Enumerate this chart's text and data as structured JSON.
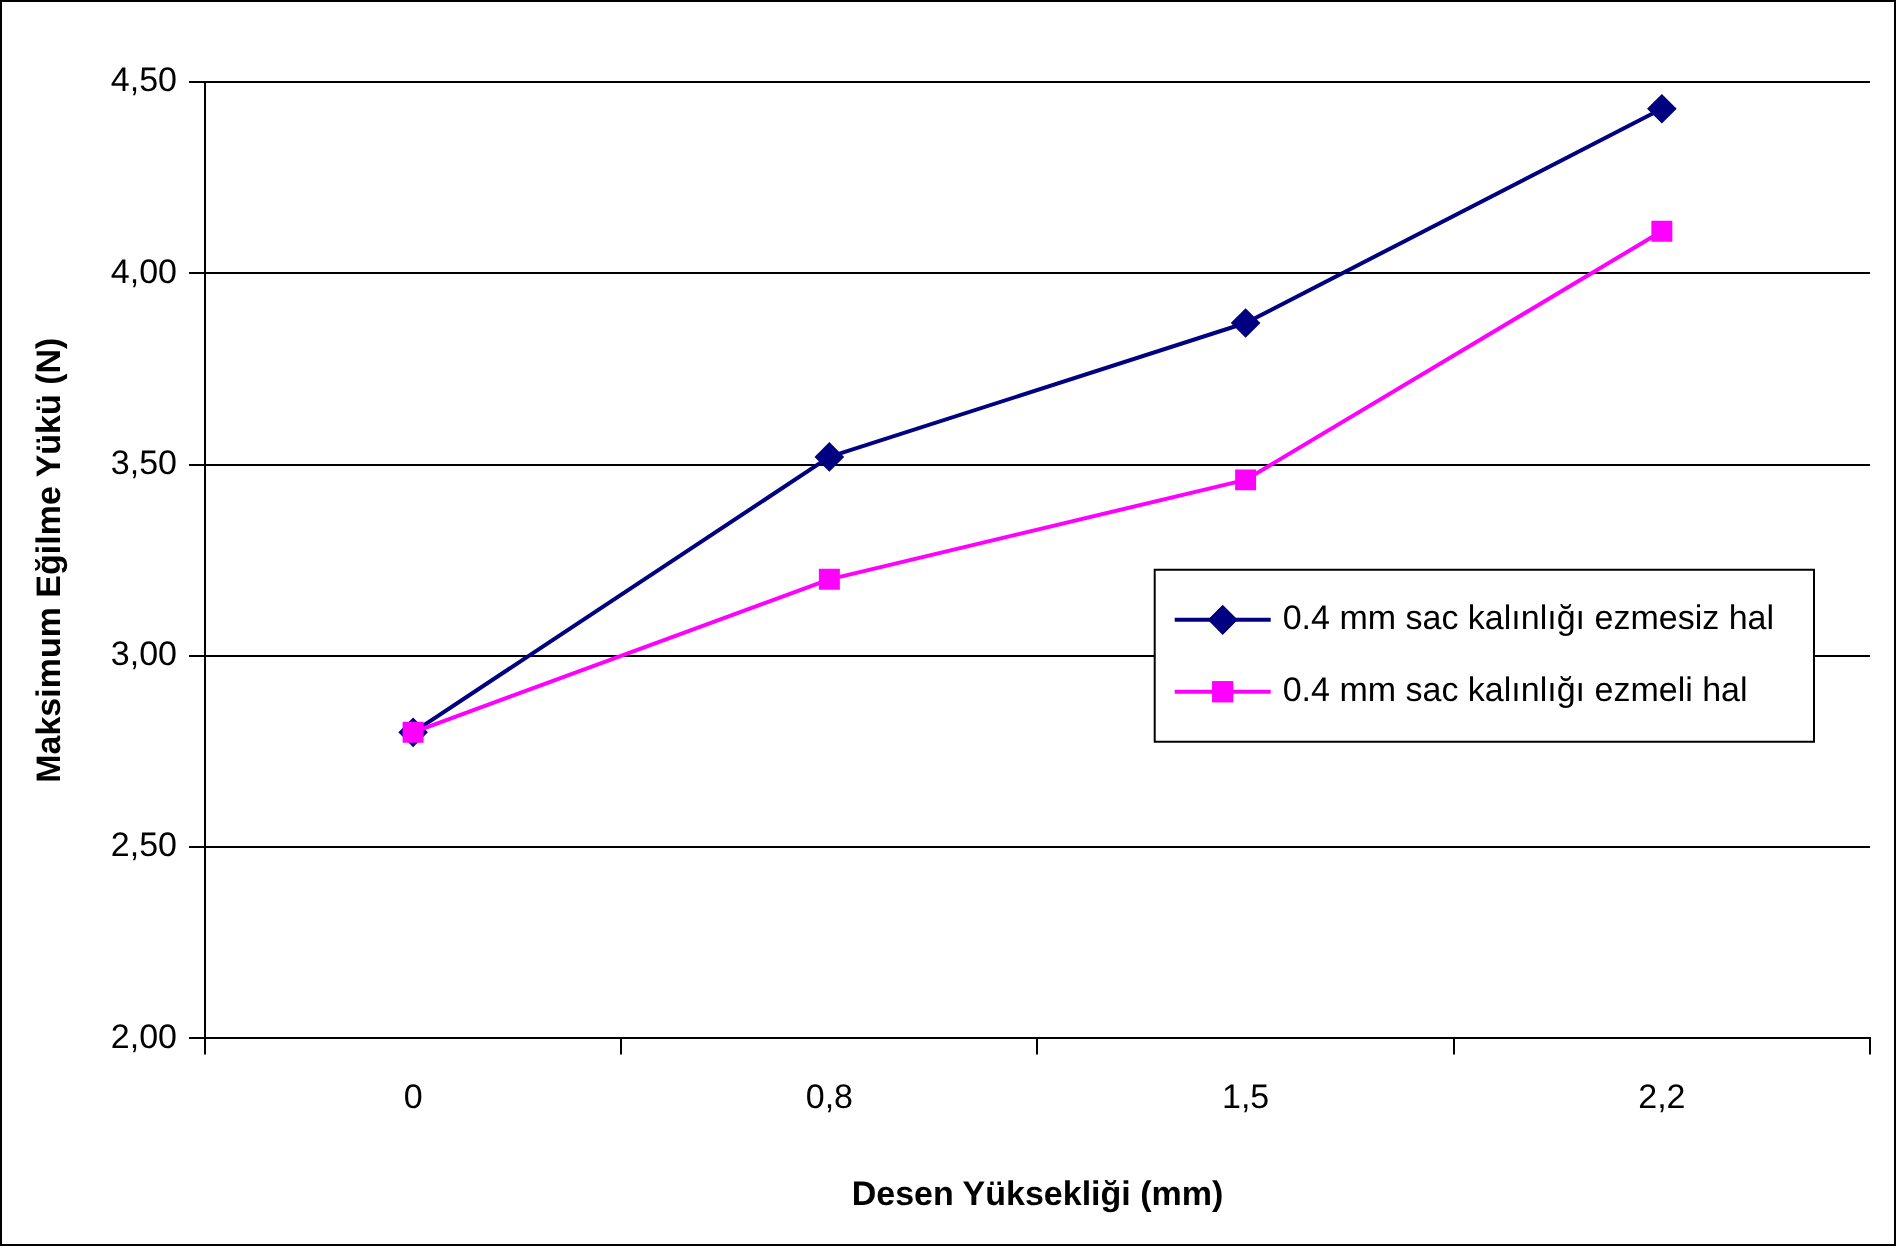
{
  "chart_data": {
    "type": "line",
    "xlabel": "Desen Yüksekliği (mm)",
    "ylabel": "Maksimum Eğilme Yükü (N)",
    "categories": [
      "0",
      "0,8",
      "1,5",
      "2,2"
    ],
    "series": [
      {
        "name": "0.4 mm sac kalınlığı ezmesiz hal",
        "color": "#000080",
        "marker": "diamond",
        "values": [
          2.8,
          3.52,
          3.87,
          4.43
        ]
      },
      {
        "name": "0.4 mm sac kalınlığı ezmeli hal",
        "color": "#ff00ff",
        "marker": "square",
        "values": [
          2.8,
          3.2,
          3.46,
          4.11
        ]
      }
    ],
    "ylim": [
      2,
      4.5
    ],
    "yticks": [
      {
        "value": 2,
        "label": "2,00"
      },
      {
        "value": 2.5,
        "label": "2,50"
      },
      {
        "value": 3,
        "label": "3,00"
      },
      {
        "value": 3.5,
        "label": "3,50"
      },
      {
        "value": 4,
        "label": "4,00"
      },
      {
        "value": 4.5,
        "label": "4,50"
      }
    ],
    "grid": "y",
    "legend": "right",
    "line_style": "solid"
  }
}
